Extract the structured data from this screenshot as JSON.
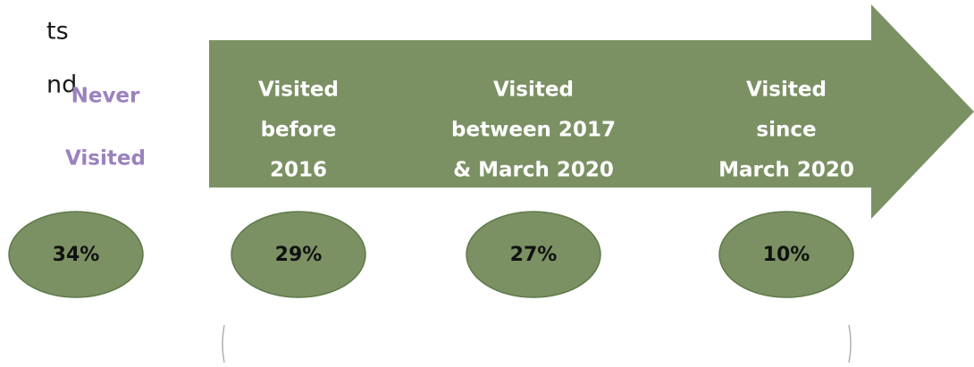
{
  "fragments": [
    "ts",
    "nd"
  ],
  "never_visited": {
    "label": [
      "Never",
      "Visited"
    ],
    "value": "34%"
  },
  "stages": [
    {
      "label": [
        "Visited",
        "before",
        "2016"
      ],
      "value": "29%"
    },
    {
      "label": [
        "Visited",
        "between 2017",
        "& March 2020"
      ],
      "value": "27%"
    },
    {
      "label": [
        "Visited",
        "since",
        "March 2020"
      ],
      "value": "10%"
    }
  ]
}
